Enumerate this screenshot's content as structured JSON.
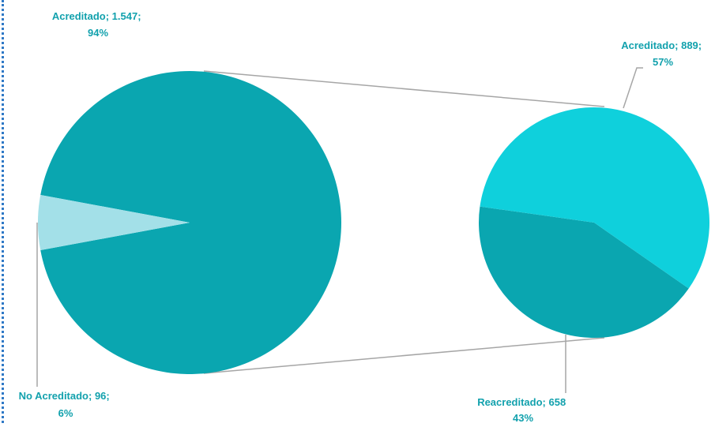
{
  "colors": {
    "main_slice": "#0aa6b0",
    "minor_slice": "#a3e0e8",
    "secondary_bright": "#0fd0dc",
    "secondary_dark": "#0aa6b0",
    "label_text": "#12a1ad",
    "connector": "#a6a6a6",
    "edge_dashes": "#2f79c6"
  },
  "chart_data": {
    "type": "pie",
    "subtype": "pie-of-pie",
    "primary": {
      "slices": [
        {
          "name": "Acreditado",
          "value": 1547,
          "percent": 94,
          "label_line1": "Acreditado; 1.547;",
          "label_line2": "94%"
        },
        {
          "name": "No Acreditado",
          "value": 96,
          "percent": 6,
          "label_line1": "No Acreditado; 96;",
          "label_line2": "6%"
        }
      ]
    },
    "secondary": {
      "slices": [
        {
          "name": "Acreditado",
          "value": 889,
          "percent": 57,
          "label_line1": "Acreditado; 889;",
          "label_line2": "57%"
        },
        {
          "name": "Reacreditado",
          "value": 658,
          "percent": 43,
          "label_line1": "Reacreditado; 658",
          "label_line2": "43%"
        }
      ]
    }
  }
}
